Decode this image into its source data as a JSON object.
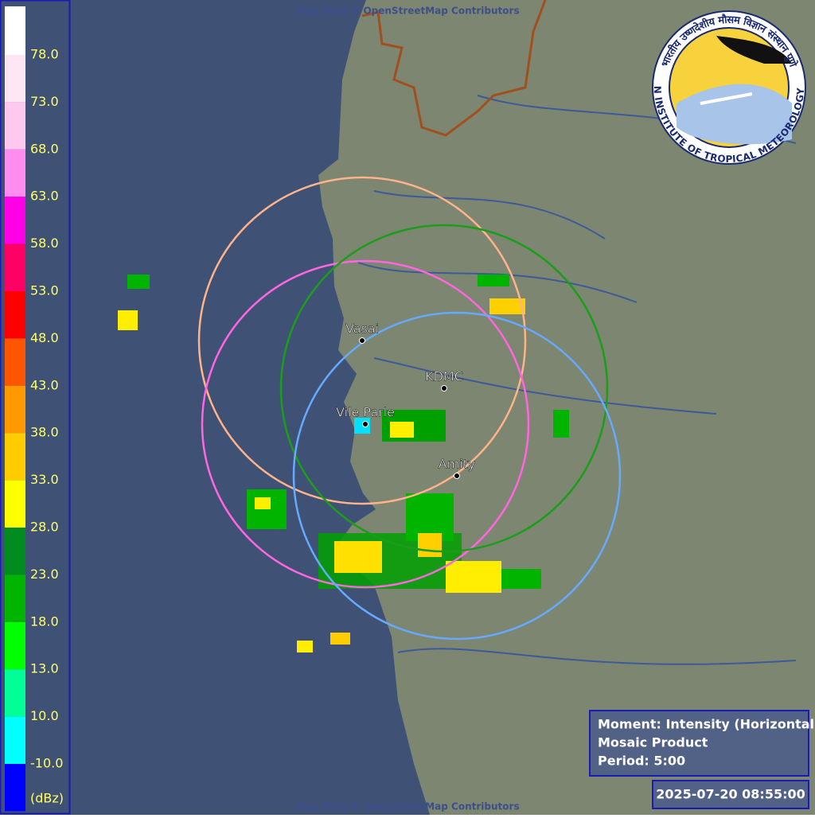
{
  "attribution": {
    "top": "Map Data © OpenStreetMap Contributors",
    "bottom": "Map Data © OpenStreetMap Contributors"
  },
  "legend": {
    "labels": [
      "78.0",
      "73.0",
      "68.0",
      "63.0",
      "58.0",
      "53.0",
      "48.0",
      "43.0",
      "38.0",
      "33.0",
      "28.0",
      "23.0",
      "18.0",
      "13.0",
      "10.0",
      "-10.0"
    ],
    "unit": "(dBz)",
    "colors": [
      "#ffffff",
      "#ffe6f5",
      "#ffc8ee",
      "#ff8cf0",
      "#ff00e6",
      "#ff0064",
      "#ff0000",
      "#ff5500",
      "#ff9900",
      "#ffcc00",
      "#ffff00",
      "#008c1e",
      "#00b400",
      "#00ff00",
      "#00ff96",
      "#00ffff",
      "#0000ff"
    ]
  },
  "stations": [
    {
      "name": "Vasai",
      "color": "#ffb38a"
    },
    {
      "name": "Vile Parle",
      "color": "#ff66e0"
    },
    {
      "name": "KDMC",
      "color": "#1a9e1a"
    },
    {
      "name": "Amity",
      "color": "#66aaff"
    }
  ],
  "logo": {
    "hindi": "भारतीय उष्णदेशीय मौसम विज्ञान संस्थान पुणे",
    "english": "INDIAN INSTITUTE OF TROPICAL METEOROLOGY PUNE"
  },
  "info": {
    "moment": "Moment: Intensity (Horizontal)",
    "product": "Mosaic Product",
    "period": "Period: 5:00"
  },
  "timestamp": "2025-07-20 08:55:00"
}
